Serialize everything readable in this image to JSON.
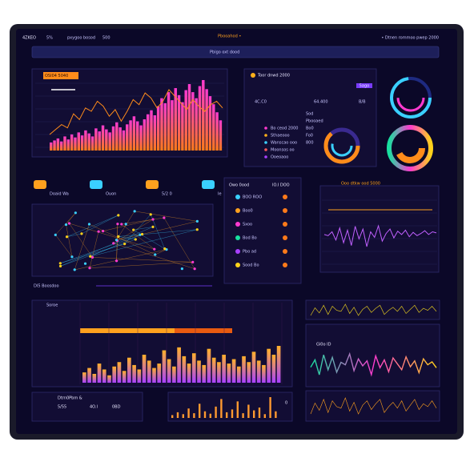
{
  "header": {
    "logo": "4ZKEO",
    "tab1": "5%",
    "tab2": "pxygoo bosod",
    "tab3": "500",
    "center": "Pbooahod •",
    "right": "• Dtnen rommoo pwep 2000"
  },
  "search": {
    "placeholder": "Pbigo oxt dood"
  },
  "activity": {
    "badge": "OSI04 5040",
    "bars": [
      8,
      10,
      12,
      9,
      14,
      11,
      16,
      13,
      18,
      15,
      20,
      17,
      14,
      22,
      19,
      25,
      21,
      18,
      24,
      28,
      23,
      20,
      26,
      30,
      34,
      29,
      25,
      31,
      36,
      40,
      35,
      44,
      52,
      47,
      58,
      50,
      62,
      55,
      48,
      60,
      66,
      58,
      52,
      64,
      70,
      61,
      54,
      46,
      38,
      30
    ],
    "line": [
      30,
      36,
      42,
      38,
      55,
      48,
      62,
      58,
      70,
      64,
      52,
      60,
      46,
      58,
      72,
      66,
      80,
      74,
      62,
      70,
      84,
      76,
      68,
      60,
      72,
      64,
      58,
      66,
      70,
      62
    ]
  },
  "summary": {
    "title": "Toor dnwd 2000",
    "tag": "5ago",
    "stat1": "4C.C0",
    "stat2": "64.400",
    "stat3": "B/B",
    "items": [
      "Bo ceod 2000",
      "Sthaeooo",
      "Wanscao ooo",
      "Moonsos oo",
      "Ooeoaoo"
    ],
    "side": [
      "Sod",
      "Pbooaed",
      "Bo0",
      "Fo0",
      "800"
    ]
  },
  "icons": [
    "Doaid Wa",
    "Ouon",
    "5/2 0",
    "Ie"
  ],
  "map": {
    "footer": "DI5 Boosdoo"
  },
  "list": {
    "header": [
      "Owo 0ood",
      "IO.I DOO"
    ],
    "items": [
      "BOO ROO",
      "Boo0",
      "Sxoo",
      "Bod Bo",
      "Pbo ad",
      "Sood Bo"
    ]
  },
  "trend": {
    "title": "Ooo dtkw ood 5000",
    "line": [
      50,
      48,
      55,
      40,
      62,
      35,
      58,
      30,
      65,
      42,
      60,
      28,
      55,
      45,
      66,
      38,
      52,
      60,
      44,
      56,
      50,
      58,
      46,
      54,
      48,
      52,
      57,
      50,
      55,
      53
    ]
  },
  "volume": {
    "label": "Soroe",
    "bars": [
      14,
      20,
      12,
      26,
      18,
      10,
      22,
      28,
      16,
      34,
      24,
      18,
      38,
      30,
      20,
      26,
      44,
      32,
      22,
      48,
      36,
      26,
      40,
      30,
      24,
      46,
      34,
      28,
      38,
      26,
      32,
      22,
      36,
      28,
      42,
      30,
      24,
      46,
      38,
      50
    ]
  },
  "wave": {
    "title": "Gi0o ID",
    "top": [
      40,
      55,
      45,
      60,
      42,
      58,
      50,
      48,
      62,
      44,
      56,
      40,
      52,
      58,
      46,
      54,
      60,
      42,
      50,
      56,
      48,
      58,
      44,
      52,
      60,
      46,
      54,
      50,
      58,
      48
    ],
    "bottom": [
      45,
      60,
      30,
      70,
      40,
      65,
      35,
      55,
      50,
      72,
      38,
      62,
      48,
      58,
      30,
      68,
      44,
      60,
      36,
      64,
      52,
      40,
      66,
      46,
      58,
      34,
      62,
      50,
      56,
      44
    ]
  },
  "strip": {
    "title": "Dtrn0Pbm &",
    "val1": "5/55",
    "val2": "4O.I",
    "val3": "0BD",
    "end": "0",
    "bars": [
      6,
      12,
      8,
      20,
      10,
      30,
      14,
      9,
      24,
      40,
      12,
      18,
      35,
      10,
      28,
      16,
      22,
      8,
      44,
      14
    ]
  }
}
